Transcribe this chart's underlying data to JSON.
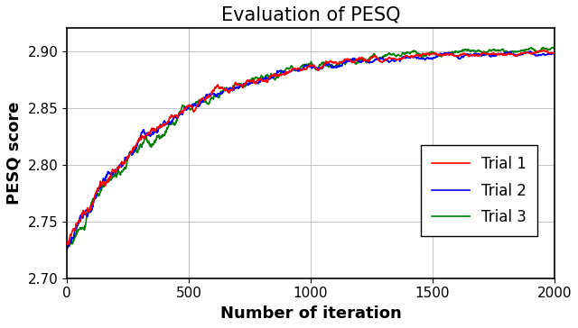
{
  "title": "Evaluation of PESQ",
  "xlabel": "Number of iteration",
  "ylabel": "PESQ score",
  "xlim": [
    0,
    2000
  ],
  "ylim": [
    2.7,
    2.92
  ],
  "yticks": [
    2.7,
    2.75,
    2.8,
    2.85,
    2.9
  ],
  "xticks": [
    0,
    500,
    1000,
    1500,
    2000
  ],
  "colors": [
    "red",
    "blue",
    "green"
  ],
  "labels": [
    "Trial 1",
    "Trial 2",
    "Trial 3"
  ],
  "n_points": 2001,
  "line_width": 1.2,
  "title_fontsize": 15,
  "axis_label_fontsize": 13,
  "tick_fontsize": 11,
  "legend_fontsize": 12,
  "start_val": 2.728,
  "end_val": 2.901,
  "time_constant": 400
}
